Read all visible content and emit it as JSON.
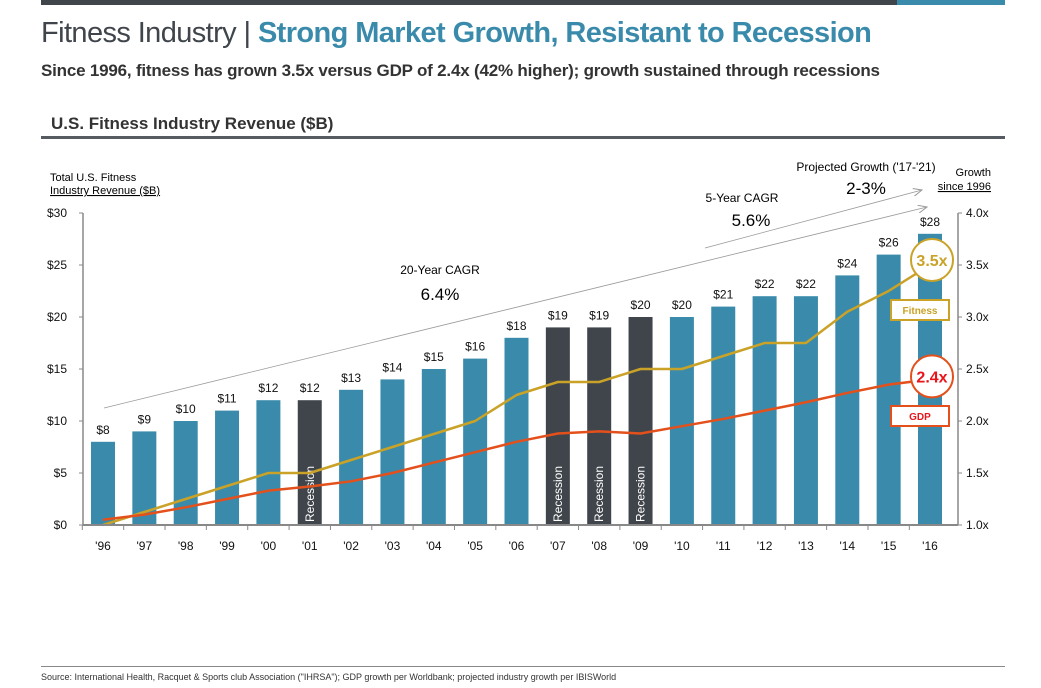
{
  "header": {
    "title_prefix": "Fitness Industry | ",
    "title_accent": "Strong Market Growth, Resistant to Recession",
    "subtitle": "Since 1996, fitness has grown 3.5x versus GDP of 2.4x (42% higher); growth sustained through recessions",
    "section_title": "U.S. Fitness Industry Revenue ($B)"
  },
  "footer": {
    "source": "Source: International Health, Racquet & Sports club Association (\"IHRSA\"); GDP growth per Worldbank; projected industry growth per IBISWorld"
  },
  "colors": {
    "bar": "#3a8bab",
    "recession_bar": "#3f454b",
    "fitness_line": "#c9a227",
    "gdp_line": "#e4501b",
    "gdp_label": "#e8161b",
    "title_accent": "#3a8bab"
  },
  "chart_data": {
    "type": "bar+line",
    "left_axis_label_line1": "Total U.S. Fitness",
    "left_axis_label_line2": "Industry Revenue ($B)",
    "right_axis_label_line1": "Growth",
    "right_axis_label_line2": "since 1996",
    "categories": [
      "'96",
      "'97",
      "'98",
      "'99",
      "'00",
      "'01",
      "'02",
      "'03",
      "'04",
      "'05",
      "'06",
      "'07",
      "'08",
      "'09",
      "'10",
      "'11",
      "'12",
      "'13",
      "'14",
      "'15",
      "'16"
    ],
    "revenue": [
      8,
      9,
      10,
      11,
      12,
      12,
      13,
      14,
      15,
      16,
      18,
      19,
      19,
      20,
      20,
      21,
      22,
      22,
      24,
      26,
      28
    ],
    "revenue_labels": [
      "$8",
      "$9",
      "$10",
      "$11",
      "$12",
      "$12",
      "$13",
      "$14",
      "$15",
      "$16",
      "$18",
      "$19",
      "$19",
      "$20",
      "$20",
      "$21",
      "$22",
      "$22",
      "$24",
      "$26",
      "$28"
    ],
    "recession_years": [
      "'01",
      "'07",
      "'08",
      "'09"
    ],
    "recession_label": "Recession",
    "ylim_left": [
      0,
      30
    ],
    "left_ticks": [
      "$0",
      "$5",
      "$10",
      "$15",
      "$20",
      "$25",
      "$30"
    ],
    "ylim_right": [
      1.0,
      4.0
    ],
    "right_ticks": [
      "1.0x",
      "1.5x",
      "2.0x",
      "2.5x",
      "3.0x",
      "3.5x",
      "4.0x"
    ],
    "series": [
      {
        "name": "Fitness",
        "end_label": "3.5x",
        "values": [
          1.0,
          1.125,
          1.25,
          1.375,
          1.5,
          1.5,
          1.625,
          1.75,
          1.875,
          2.0,
          2.25,
          2.375,
          2.375,
          2.5,
          2.5,
          2.625,
          2.75,
          2.75,
          3.05,
          3.25,
          3.5
        ]
      },
      {
        "name": "GDP",
        "end_label": "2.4x",
        "values": [
          1.05,
          1.1,
          1.17,
          1.25,
          1.33,
          1.37,
          1.42,
          1.5,
          1.6,
          1.7,
          1.8,
          1.88,
          1.9,
          1.88,
          1.95,
          2.02,
          2.1,
          2.18,
          2.27,
          2.35,
          2.4
        ]
      }
    ],
    "annotations": {
      "cagr20_label": "20-Year CAGR",
      "cagr20_value": "6.4%",
      "cagr5_label": "5-Year CAGR",
      "cagr5_value": "5.6%",
      "projected_label": "Projected Growth ('17-'21)",
      "projected_value": "2-3%"
    },
    "grid": false
  }
}
